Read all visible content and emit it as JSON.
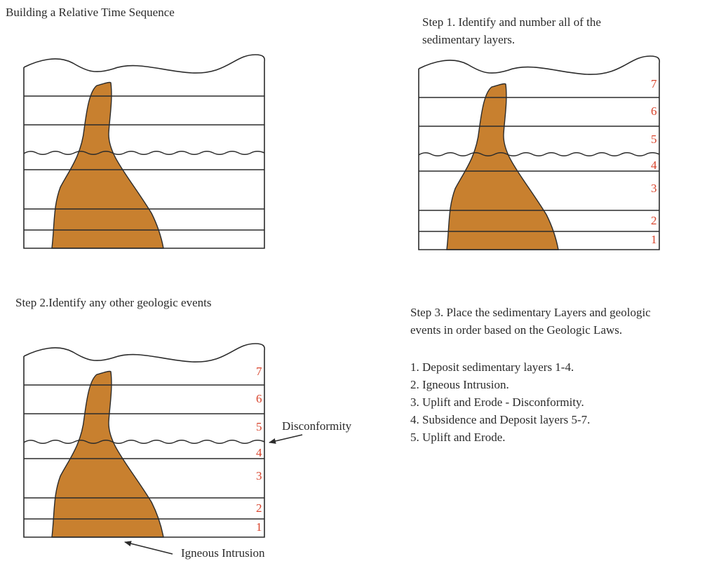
{
  "page_title": "Building a Relative Time Sequence",
  "step1": {
    "lines": [
      "Step 1. Identify and number all of the",
      "sedimentary layers."
    ],
    "layer_numbers": [
      "7",
      "6",
      "5",
      "4",
      "3",
      "2",
      "1"
    ]
  },
  "step2": {
    "title": "Step 2.Identify any other geologic events",
    "layer_numbers": [
      "7",
      "6",
      "5",
      "4",
      "3",
      "2",
      "1"
    ],
    "disconformity_label": "Disconformity",
    "intrusion_label": "Igneous Intrusion"
  },
  "step3": {
    "lines": [
      "Step 3. Place the sedimentary Layers and geologic",
      "events in order based on the Geologic Laws."
    ],
    "sequence": [
      "1. Deposit sedimentary layers 1-4.",
      "2. Igneous Intrusion.",
      "3. Uplift and Erode - Disconformity.",
      "4. Subsidence and Deposit layers 5-7.",
      "5. Uplift and Erode."
    ]
  },
  "colors": {
    "intrusion": "#c8802f",
    "layer_number": "#d8432b",
    "line": "#2b2b2b"
  }
}
